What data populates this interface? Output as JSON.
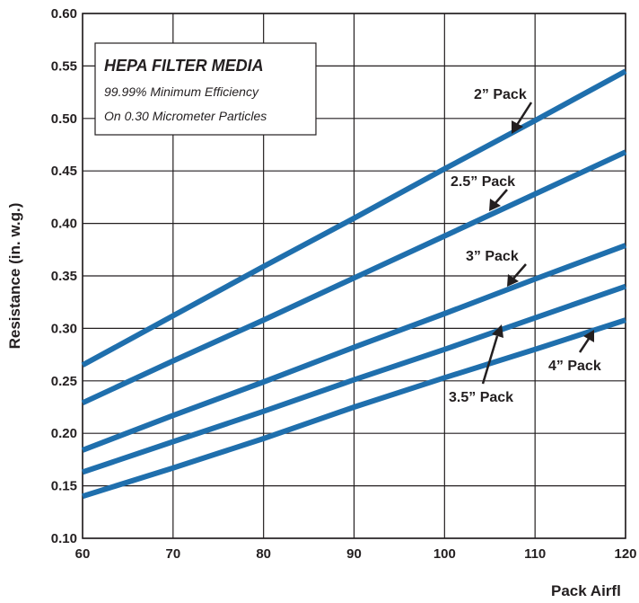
{
  "chart_data": {
    "type": "line",
    "xlabel": "Pack Airfl",
    "ylabel": "Resistance (in. w.g.)",
    "xlim": [
      60,
      120
    ],
    "ylim": [
      0.1,
      0.6
    ],
    "x_ticks": [
      "60",
      "70",
      "80",
      "90",
      "100",
      "110",
      "120"
    ],
    "y_ticks": [
      "0.10",
      "0.15",
      "0.20",
      "0.25",
      "0.30",
      "0.35",
      "0.40",
      "0.45",
      "0.50",
      "0.55",
      "0.60"
    ],
    "grid": true,
    "line_color": "#1f6fad",
    "legend_box": {
      "title": "HEPA FILTER MEDIA",
      "line1": "99.99% Minimum Efficiency",
      "line2": "On 0.30 Micrometer Particles"
    },
    "series": [
      {
        "name": "2” Pack",
        "x": [
          60,
          70,
          80,
          90,
          100,
          110,
          120
        ],
        "values": [
          0.265,
          0.312,
          0.359,
          0.405,
          0.452,
          0.498,
          0.545
        ]
      },
      {
        "name": "2.5” Pack",
        "x": [
          60,
          70,
          80,
          90,
          100,
          110,
          120
        ],
        "values": [
          0.229,
          0.269,
          0.308,
          0.348,
          0.388,
          0.428,
          0.468
        ]
      },
      {
        "name": "3” Pack",
        "x": [
          60,
          70,
          80,
          90,
          100,
          110,
          120
        ],
        "values": [
          0.184,
          0.217,
          0.249,
          0.282,
          0.314,
          0.347,
          0.379
        ]
      },
      {
        "name": "3.5” Pack",
        "x": [
          60,
          70,
          80,
          90,
          100,
          110,
          120
        ],
        "values": [
          0.163,
          0.192,
          0.221,
          0.251,
          0.28,
          0.31,
          0.34
        ]
      },
      {
        "name": "4” Pack",
        "x": [
          60,
          70,
          80,
          90,
          100,
          110,
          120
        ],
        "values": [
          0.14,
          0.167,
          0.195,
          0.225,
          0.253,
          0.28,
          0.308
        ]
      }
    ]
  }
}
